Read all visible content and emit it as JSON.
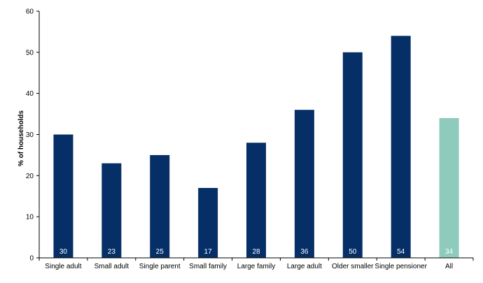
{
  "chart_data": {
    "type": "bar",
    "title": "",
    "xlabel": "",
    "ylabel": "% of households",
    "ylim": [
      0,
      60
    ],
    "yticks": [
      0,
      10,
      20,
      30,
      40,
      50,
      60
    ],
    "grid": false,
    "categories": [
      "Single adult",
      "Small adult",
      "Single parent",
      "Small family",
      "Large family",
      "Large adult",
      "Older smaller",
      "Single pensioner",
      "All"
    ],
    "values": [
      30,
      23,
      25,
      17,
      28,
      36,
      50,
      54,
      34
    ],
    "data_labels": [
      "30",
      "23",
      "25",
      "17",
      "28",
      "36",
      "50",
      "54",
      "34"
    ],
    "colors": {
      "bar": "#052f66",
      "highlight_bar": "#8fcbbd",
      "axis": "#000000"
    },
    "highlight_categories": [
      "All"
    ]
  }
}
